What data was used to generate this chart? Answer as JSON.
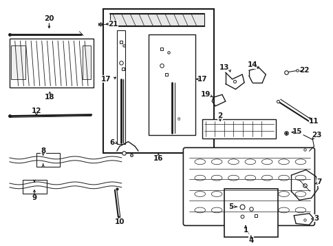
{
  "bg_color": "#ffffff",
  "lc": "#1a1a1a",
  "fig_width": 4.85,
  "fig_height": 3.57,
  "dpi": 100
}
